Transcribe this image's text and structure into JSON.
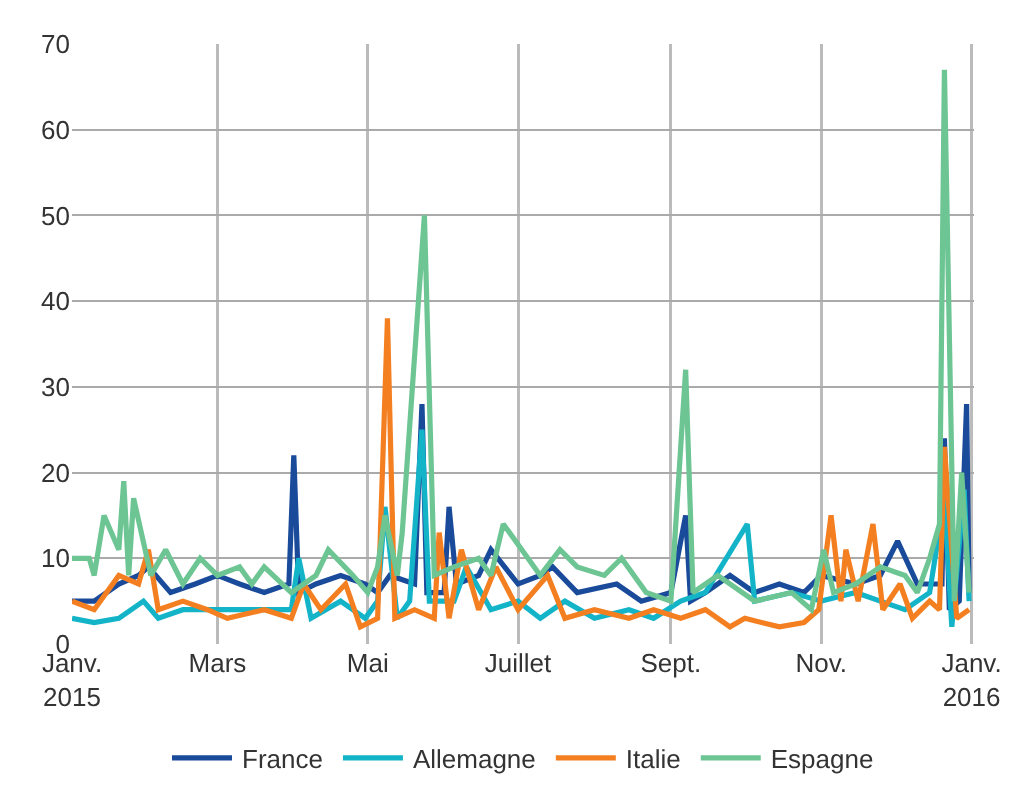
{
  "chart_data": {
    "type": "line",
    "xlim": [
      "2015-01-01",
      "2016-01-02"
    ],
    "ylim": [
      0,
      70
    ],
    "xticks": [
      {
        "value": "2015-01-01",
        "label": "Janv.\n2015"
      },
      {
        "value": "2015-03-01",
        "label": "Mars"
      },
      {
        "value": "2015-05-01",
        "label": "Mai"
      },
      {
        "value": "2015-07-01",
        "label": "Juillet"
      },
      {
        "value": "2015-09-01",
        "label": "Sept."
      },
      {
        "value": "2015-11-01",
        "label": "Nov."
      },
      {
        "value": "2016-01-01",
        "label": "Janv.\n2016"
      }
    ],
    "yticks": [
      0,
      10,
      20,
      30,
      40,
      50,
      60,
      70
    ],
    "grid": true,
    "legend": "bottom",
    "marker": "none",
    "line_style": "solid",
    "series": [
      {
        "name": "France",
        "color": "#1a4a9a",
        "x": [
          "2015-01-01",
          "2015-01-10",
          "2015-01-20",
          "2015-01-28",
          "2015-02-01",
          "2015-02-10",
          "2015-02-20",
          "2015-03-01",
          "2015-03-10",
          "2015-03-20",
          "2015-03-30",
          "2015-04-01",
          "2015-04-03",
          "2015-04-10",
          "2015-04-20",
          "2015-04-30",
          "2015-05-05",
          "2015-05-10",
          "2015-05-20",
          "2015-05-23",
          "2015-05-25",
          "2015-06-01",
          "2015-06-03",
          "2015-06-06",
          "2015-06-15",
          "2015-06-20",
          "2015-07-01",
          "2015-07-10",
          "2015-07-15",
          "2015-07-25",
          "2015-08-10",
          "2015-08-20",
          "2015-09-01",
          "2015-09-07",
          "2015-09-09",
          "2015-09-15",
          "2015-09-25",
          "2015-10-05",
          "2015-10-15",
          "2015-10-25",
          "2015-11-01",
          "2015-11-15",
          "2015-11-25",
          "2015-12-02",
          "2015-12-10",
          "2015-12-20",
          "2015-12-21",
          "2015-12-23",
          "2015-12-27",
          "2015-12-30",
          "2015-12-31"
        ],
        "values": [
          5,
          5,
          7,
          8,
          9,
          6,
          7,
          8,
          7,
          6,
          7,
          22,
          6,
          7,
          8,
          7,
          6,
          8,
          7,
          28,
          6,
          6,
          16,
          7,
          8,
          11,
          7,
          8,
          9,
          6,
          7,
          5,
          6,
          15,
          5,
          6,
          8,
          6,
          7,
          6,
          8,
          7,
          8,
          12,
          7,
          7,
          24,
          4,
          5,
          28,
          6
        ]
      },
      {
        "name": "Allemagne",
        "color": "#14b4c8",
        "x": [
          "2015-01-01",
          "2015-01-10",
          "2015-01-20",
          "2015-01-30",
          "2015-02-05",
          "2015-02-15",
          "2015-03-01",
          "2015-03-20",
          "2015-03-31",
          "2015-04-03",
          "2015-04-08",
          "2015-04-20",
          "2015-04-30",
          "2015-05-05",
          "2015-05-08",
          "2015-05-13",
          "2015-05-18",
          "2015-05-23",
          "2015-05-26",
          "2015-06-05",
          "2015-06-10",
          "2015-06-20",
          "2015-07-01",
          "2015-07-10",
          "2015-07-20",
          "2015-08-01",
          "2015-08-15",
          "2015-08-25",
          "2015-09-05",
          "2015-09-15",
          "2015-10-02",
          "2015-10-05",
          "2015-10-20",
          "2015-11-01",
          "2015-11-15",
          "2015-11-25",
          "2015-12-05",
          "2015-12-15",
          "2015-12-21",
          "2015-12-24",
          "2015-12-29",
          "2015-12-31"
        ],
        "values": [
          3,
          2.5,
          3,
          5,
          3,
          4,
          4,
          4,
          4,
          10,
          3,
          5,
          3,
          5,
          16,
          3,
          5,
          25,
          5,
          5,
          9,
          4,
          5,
          3,
          5,
          3,
          4,
          3,
          5,
          6,
          14,
          5,
          6,
          5,
          6,
          5,
          4,
          6,
          17,
          2,
          18,
          5
        ]
      },
      {
        "name": "Italie",
        "color": "#f47f20",
        "x": [
          "2015-01-01",
          "2015-01-10",
          "2015-01-20",
          "2015-01-28",
          "2015-02-01",
          "2015-02-05",
          "2015-02-15",
          "2015-02-25",
          "2015-03-05",
          "2015-03-20",
          "2015-03-31",
          "2015-04-05",
          "2015-04-12",
          "2015-04-22",
          "2015-04-28",
          "2015-05-05",
          "2015-05-09",
          "2015-05-12",
          "2015-05-20",
          "2015-05-28",
          "2015-05-30",
          "2015-06-03",
          "2015-06-08",
          "2015-06-15",
          "2015-06-22",
          "2015-07-01",
          "2015-07-13",
          "2015-07-20",
          "2015-08-01",
          "2015-08-15",
          "2015-08-25",
          "2015-09-05",
          "2015-09-15",
          "2015-09-25",
          "2015-10-01",
          "2015-10-15",
          "2015-10-25",
          "2015-10-31",
          "2015-11-05",
          "2015-11-09",
          "2015-11-11",
          "2015-11-16",
          "2015-11-22",
          "2015-11-26",
          "2015-12-03",
          "2015-12-08",
          "2015-12-15",
          "2015-12-19",
          "2015-12-21",
          "2015-12-26",
          "2015-12-31"
        ],
        "values": [
          5,
          4,
          8,
          7,
          11,
          4,
          5,
          4,
          3,
          4,
          3,
          7,
          4,
          7,
          2,
          3,
          38,
          3,
          4,
          3,
          13,
          3,
          11,
          4,
          9,
          4,
          8,
          3,
          4,
          3,
          4,
          3,
          4,
          2,
          3,
          2,
          2.5,
          4,
          15,
          5,
          11,
          5,
          14,
          4,
          7,
          3,
          5,
          4,
          23,
          3,
          4
        ]
      },
      {
        "name": "Espagne",
        "color": "#6cc593",
        "x": [
          "2015-01-01",
          "2015-01-08",
          "2015-01-10",
          "2015-01-14",
          "2015-01-20",
          "2015-01-22",
          "2015-01-24",
          "2015-01-26",
          "2015-02-02",
          "2015-02-08",
          "2015-02-15",
          "2015-02-22",
          "2015-03-01",
          "2015-03-10",
          "2015-03-15",
          "2015-03-20",
          "2015-03-31",
          "2015-04-10",
          "2015-04-15",
          "2015-04-25",
          "2015-05-01",
          "2015-05-05",
          "2015-05-08",
          "2015-05-13",
          "2015-05-15",
          "2015-05-24",
          "2015-05-28",
          "2015-06-05",
          "2015-06-15",
          "2015-06-20",
          "2015-06-25",
          "2015-07-05",
          "2015-07-10",
          "2015-07-18",
          "2015-07-25",
          "2015-08-05",
          "2015-08-12",
          "2015-08-22",
          "2015-09-01",
          "2015-09-07",
          "2015-09-10",
          "2015-09-20",
          "2015-10-05",
          "2015-10-20",
          "2015-10-28",
          "2015-11-02",
          "2015-11-06",
          "2015-11-15",
          "2015-11-25",
          "2015-12-05",
          "2015-12-10",
          "2015-12-15",
          "2015-12-19",
          "2015-12-21",
          "2015-12-25",
          "2015-12-28",
          "2015-12-31"
        ],
        "values": [
          10,
          10,
          8,
          15,
          11,
          19,
          8,
          17,
          8,
          11,
          7,
          10,
          8,
          9,
          7,
          9,
          6,
          8,
          11,
          8,
          6,
          9,
          15,
          8,
          13,
          50,
          8,
          9,
          10,
          8,
          14,
          10,
          8,
          11,
          9,
          8,
          10,
          6,
          5,
          32,
          6,
          8,
          5,
          6,
          4,
          11,
          6,
          7,
          9,
          8,
          6,
          10,
          14,
          67,
          5,
          20,
          6
        ]
      }
    ]
  }
}
